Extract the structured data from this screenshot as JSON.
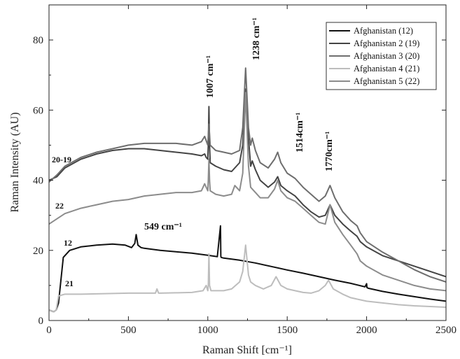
{
  "chart_data": {
    "type": "line",
    "title": "",
    "xlabel": "Raman Shift [cm⁻¹]",
    "ylabel": "Raman Intensity (AU)",
    "xlim": [
      0,
      2500
    ],
    "ylim": [
      0,
      90
    ],
    "xticks": [
      "0",
      "500",
      "1000",
      "1500",
      "2000",
      "2500"
    ],
    "yticks": [
      "0",
      "20",
      "40",
      "60",
      "80"
    ],
    "grid": false,
    "legend_position": "top-right",
    "series": [
      {
        "name": "Afghanistan (12)",
        "color": "#111111",
        "x": [
          0,
          30,
          45,
          60,
          90,
          130,
          200,
          300,
          400,
          480,
          520,
          540,
          549,
          560,
          580,
          600,
          700,
          800,
          900,
          1000,
          1060,
          1080,
          1082,
          1084,
          1100,
          1200,
          1300,
          1400,
          1500,
          1600,
          1700,
          1800,
          1900,
          1990,
          2000,
          2002,
          2010,
          2100,
          2200,
          2300,
          2400,
          2500
        ],
        "y": [
          3,
          2.5,
          3,
          5,
          18,
          20,
          21,
          21.5,
          21.8,
          21.5,
          20.8,
          22,
          24.5,
          21.5,
          20.8,
          20.6,
          20,
          19.6,
          19.2,
          18.6,
          18.2,
          27,
          18.3,
          18,
          17.8,
          17.2,
          16.4,
          15.4,
          14.4,
          13.5,
          12.5,
          11.5,
          10.6,
          9.6,
          10.5,
          9.4,
          9.2,
          8.3,
          7.5,
          6.8,
          6.1,
          5.5
        ]
      },
      {
        "name": "Afghanistan 2 (19)",
        "color": "#444444",
        "x": [
          0,
          50,
          100,
          200,
          300,
          400,
          500,
          600,
          700,
          800,
          900,
          960,
          980,
          990,
          1000,
          1003,
          1007,
          1011,
          1015,
          1050,
          1100,
          1150,
          1200,
          1220,
          1238,
          1256,
          1270,
          1280,
          1300,
          1330,
          1380,
          1420,
          1440,
          1460,
          1500,
          1550,
          1600,
          1650,
          1700,
          1740,
          1770,
          1800,
          1850,
          1900,
          1940,
          1960,
          2000,
          2100,
          2200,
          2300,
          2400,
          2500
        ],
        "y": [
          40,
          41,
          43.5,
          46,
          47.5,
          48.5,
          49,
          49,
          48.5,
          48,
          47.5,
          47,
          47.5,
          46.5,
          46,
          50,
          61,
          50,
          45,
          44,
          43,
          42.5,
          45,
          50,
          66,
          52,
          44,
          45.5,
          43,
          40,
          38,
          39.5,
          41,
          38.5,
          37,
          35.5,
          33,
          31,
          29.5,
          30,
          33,
          30,
          27.5,
          25.5,
          24,
          22.5,
          21,
          18.5,
          17,
          15.5,
          14,
          12.5
        ]
      },
      {
        "name": "Afghanistan 3 (20)",
        "color": "#6e6e6e",
        "x": [
          0,
          50,
          100,
          200,
          300,
          400,
          500,
          600,
          700,
          800,
          900,
          960,
          980,
          1000,
          1007,
          1015,
          1050,
          1100,
          1150,
          1200,
          1220,
          1238,
          1256,
          1270,
          1280,
          1300,
          1330,
          1380,
          1420,
          1440,
          1460,
          1500,
          1550,
          1600,
          1650,
          1700,
          1740,
          1770,
          1800,
          1850,
          1900,
          1940,
          1960,
          2000,
          2100,
          2200,
          2300,
          2400,
          2500
        ],
        "y": [
          39.5,
          41.5,
          44,
          46.5,
          48,
          49,
          50,
          50.5,
          50.5,
          50.5,
          50,
          51,
          52.5,
          50,
          56,
          50,
          48.5,
          48,
          47.5,
          48.5,
          55,
          72,
          55,
          50,
          52,
          48.5,
          45,
          43.5,
          46,
          48,
          45,
          42,
          40.5,
          38,
          36,
          34,
          35.5,
          38.5,
          35,
          31,
          28.5,
          27,
          25,
          22.5,
          19.5,
          17,
          14.5,
          12.5,
          11
        ]
      },
      {
        "name": "Afghanistan 4 (21)",
        "color": "#bdbdbd",
        "x": [
          0,
          30,
          45,
          60,
          100,
          200,
          300,
          400,
          500,
          600,
          670,
          680,
          690,
          700,
          800,
          900,
          970,
          990,
          1000,
          1003,
          1007,
          1011,
          1020,
          1100,
          1150,
          1200,
          1220,
          1238,
          1256,
          1270,
          1300,
          1350,
          1400,
          1430,
          1460,
          1500,
          1550,
          1600,
          1650,
          1700,
          1740,
          1760,
          1790,
          1850,
          1900,
          2000,
          2100,
          2200,
          2300,
          2400,
          2500
        ],
        "y": [
          3,
          2.5,
          3,
          7,
          7.5,
          7.5,
          7.6,
          7.7,
          7.8,
          7.8,
          7.8,
          9,
          7.8,
          7.8,
          7.9,
          8,
          8.5,
          10,
          8.5,
          10,
          19,
          10,
          8.5,
          8.5,
          9,
          11,
          14,
          21.5,
          13,
          11,
          10,
          9,
          10,
          12.5,
          10,
          9,
          8.5,
          8,
          7.8,
          8.5,
          10,
          11.5,
          9,
          7.5,
          6.5,
          5.5,
          5,
          4.5,
          4.2,
          4,
          3.8
        ]
      },
      {
        "name": "Afghanistan 5 (22)",
        "color": "#8c8c8c",
        "x": [
          0,
          50,
          100,
          200,
          300,
          400,
          500,
          600,
          700,
          800,
          900,
          960,
          980,
          990,
          1000,
          1003,
          1007,
          1011,
          1015,
          1050,
          1100,
          1150,
          1170,
          1200,
          1220,
          1238,
          1256,
          1270,
          1300,
          1330,
          1380,
          1420,
          1440,
          1460,
          1500,
          1550,
          1600,
          1650,
          1700,
          1740,
          1770,
          1800,
          1850,
          1900,
          1940,
          1960,
          2000,
          2100,
          2200,
          2300,
          2400,
          2500
        ],
        "y": [
          27.5,
          29,
          30.5,
          32,
          33,
          34,
          34.5,
          35.5,
          36,
          36.5,
          36.5,
          37,
          39,
          38,
          37,
          40,
          46,
          40,
          37,
          36,
          35.5,
          36,
          38.5,
          37,
          42,
          65,
          44,
          38,
          36.5,
          35,
          35,
          37.5,
          40,
          37,
          35,
          34,
          32,
          30,
          28,
          27.5,
          33,
          28,
          24.5,
          21.5,
          19,
          17,
          15.5,
          13,
          11.5,
          10,
          9,
          8.5
        ]
      }
    ],
    "annotations": [
      {
        "text": "1007 cm⁻¹",
        "x": 1007,
        "rotated": true
      },
      {
        "text": "1238 cm⁻¹",
        "x": 1238,
        "rotated": true
      },
      {
        "text": "1514cm⁻¹",
        "x": 1514,
        "rotated": true
      },
      {
        "text": "1770cm⁻¹",
        "x": 1770,
        "rotated": true
      },
      {
        "text": "549 cm⁻¹",
        "x": 549,
        "rotated": false
      }
    ],
    "curve_labels": [
      "20-19",
      "22",
      "12",
      "21"
    ]
  }
}
